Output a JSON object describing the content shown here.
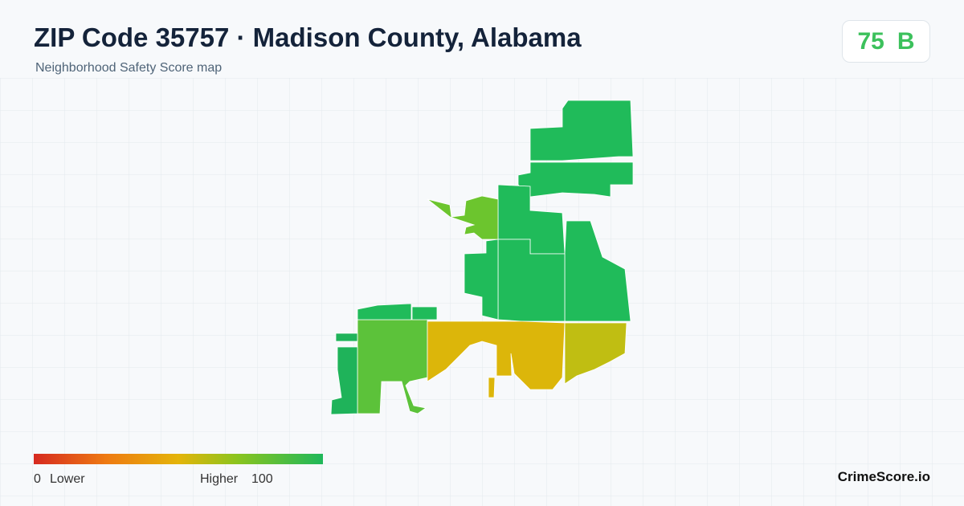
{
  "header": {
    "title": "ZIP Code 35757 · Madison County, Alabama",
    "subtitle": "Neighborhood Safety Score map"
  },
  "badge": {
    "score": 75,
    "grade": "B"
  },
  "legend": {
    "min": 0,
    "min_label": "Lower",
    "max_label": "Higher",
    "max": 100
  },
  "brand": "CrimeScore.io"
}
